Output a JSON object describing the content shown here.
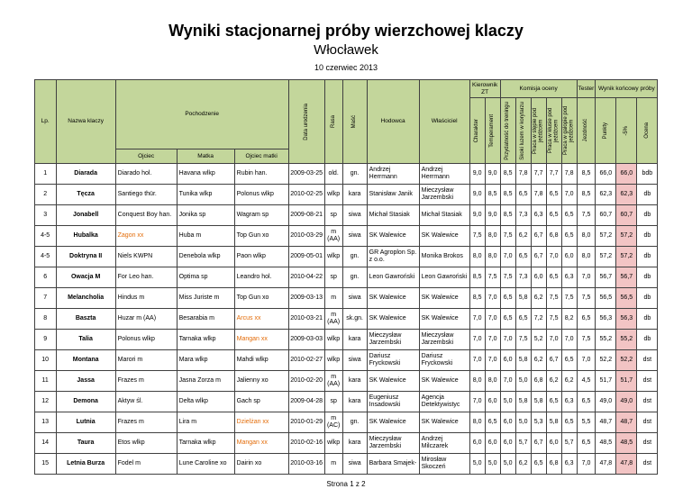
{
  "page": {
    "title": "Wyniki stacjonarnej próby wierzchowej klaczy",
    "subtitle": "Włocławek",
    "date": "10 czerwiec 2013",
    "footer": "Strona 1 z 2"
  },
  "colors": {
    "header_bg": "#c3d69b",
    "highlight_bg": "#f2c4c4",
    "special_text": "#e36c09"
  },
  "table": {
    "headers": {
      "lp": "Lp.",
      "nazwa": "Nazwa klaczy",
      "pochodzenie": "Pochodzenie",
      "ojciec": "Ojciec",
      "matka": "Matka",
      "ojciec_matki": "Ojciec matki",
      "data_urodzenia": "Data urodzenia",
      "rasa": "Rasa",
      "masc": "Maść",
      "hodowca": "Hodowca",
      "wlasciciel": "Właściciel",
      "kierownik_zt": "Kierownik ZT",
      "komisja_oceny": "Komisja oceny",
      "tester": "Tester",
      "wynik_koncowy": "Wynik końcowy próby",
      "charakter": "Charakter",
      "temperament": "Temperament",
      "przydatnosc": "Przydatność do treningu",
      "skoki": "Skoki luzem w korytarzu",
      "praca_step": "Praca w stępie pod jeźdźcem",
      "praca_klus": "Praca w kłusie pod jeźdźcem",
      "praca_galop": "Praca w galopie pod jeźdźcem",
      "jezdnosc": "Jezdność",
      "punkty": "Punkty",
      "minus5": "-5%",
      "ocena": "Ocena"
    },
    "rows": [
      {
        "lp": "1",
        "nazwa": "Diarada",
        "ojciec": "Diarado hol.",
        "matka": "Havana wlkp",
        "ojciec_matki": "Rubin han.",
        "data_ur": "2009-03-25",
        "rasa": "old.",
        "masc": "gn.",
        "hodowca": "Andrzej Herrmann",
        "wlasciciel": "Andrzej Herrmann",
        "oceny": [
          "9,0",
          "9,0",
          "8,5",
          "7,8",
          "7,7",
          "7,7",
          "7,8",
          "8,5"
        ],
        "punkty": "66,0",
        "minus5": "66,0",
        "ocena": "bdb"
      },
      {
        "lp": "2",
        "nazwa": "Tęcza",
        "ojciec": "Santiego thür.",
        "matka": "Tunika wlkp",
        "ojciec_matki": "Polonus wlkp",
        "data_ur": "2010-02-25",
        "rasa": "wlkp",
        "masc": "kara",
        "hodowca": "Stanisław Janik",
        "wlasciciel": "Mieczysław Jarzembski",
        "oceny": [
          "9,0",
          "8,5",
          "8,5",
          "6,5",
          "7,8",
          "6,5",
          "7,0",
          "8,5"
        ],
        "punkty": "62,3",
        "minus5": "62,3",
        "ocena": "db"
      },
      {
        "lp": "3",
        "nazwa": "Jonabell",
        "ojciec": "Conquest Boy han.",
        "matka": "Jonika sp",
        "ojciec_matki": "Wagram sp",
        "data_ur": "2009-08-21",
        "rasa": "sp",
        "masc": "siwa",
        "hodowca": "Michał Stasiak",
        "wlasciciel": "Michał Stasiak",
        "oceny": [
          "9,0",
          "9,0",
          "8,5",
          "7,3",
          "6,3",
          "6,5",
          "6,5",
          "7,5"
        ],
        "punkty": "60,7",
        "minus5": "60,7",
        "ocena": "db"
      },
      {
        "lp": "4-5",
        "nazwa": "Hubalka",
        "ojciec": "Zagon xx",
        "ojciec_red": true,
        "matka": "Huba m",
        "ojciec_matki": "Top Gun xo",
        "data_ur": "2010-03-29",
        "rasa": "m (AA)",
        "masc": "siwa",
        "hodowca": "SK Walewice",
        "wlasciciel": "SK Walewice",
        "oceny": [
          "7,5",
          "8,0",
          "7,5",
          "6,2",
          "6,7",
          "6,8",
          "6,5",
          "8,0"
        ],
        "punkty": "57,2",
        "minus5": "57,2",
        "ocena": "db"
      },
      {
        "lp": "4-5",
        "nazwa": "Doktryna II",
        "ojciec": "Niels KWPN",
        "matka": "Denebola wlkp",
        "ojciec_matki": "Paon wlkp",
        "data_ur": "2009-05-01",
        "rasa": "wlkp",
        "masc": "gn.",
        "hodowca": "GR Agroplon Sp. z o.o.",
        "wlasciciel": "Monika Brokos",
        "oceny": [
          "8,0",
          "8,0",
          "7,0",
          "6,5",
          "6,7",
          "7,0",
          "6,0",
          "8,0"
        ],
        "punkty": "57,2",
        "minus5": "57,2",
        "ocena": "db"
      },
      {
        "lp": "6",
        "nazwa": "Owacja M",
        "ojciec": "For Leo han.",
        "matka": "Optima sp",
        "ojciec_matki": "Leandro hol.",
        "data_ur": "2010-04-22",
        "rasa": "sp",
        "masc": "gn.",
        "hodowca": "Leon Gawroński",
        "wlasciciel": "Leon Gawroński",
        "oceny": [
          "8,5",
          "7,5",
          "7,5",
          "7,3",
          "6,0",
          "6,5",
          "6,3",
          "7,0"
        ],
        "punkty": "56,7",
        "minus5": "56,7",
        "ocena": "db"
      },
      {
        "lp": "7",
        "nazwa": "Melancholia",
        "ojciec": "Hindus m",
        "matka": "Miss Juriste m",
        "ojciec_matki": "Top Gun xo",
        "data_ur": "2009-03-13",
        "rasa": "m",
        "masc": "siwa",
        "hodowca": "SK Walewice",
        "wlasciciel": "SK Walewice",
        "oceny": [
          "8,5",
          "7,0",
          "6,5",
          "5,8",
          "6,2",
          "7,5",
          "7,5",
          "7,5"
        ],
        "punkty": "56,5",
        "minus5": "56,5",
        "ocena": "db"
      },
      {
        "lp": "8",
        "nazwa": "Baszta",
        "ojciec": "Huzar m (AA)",
        "matka": "Besarabia m",
        "ojciec_matki": "Arcus xx",
        "ojciec_matki_red": true,
        "data_ur": "2010-03-21",
        "rasa": "m (AA)",
        "masc": "sk.gn.",
        "hodowca": "SK Walewice",
        "wlasciciel": "SK Walewice",
        "oceny": [
          "7,0",
          "7,0",
          "6,5",
          "6,5",
          "7,2",
          "7,5",
          "8,2",
          "6,5"
        ],
        "punkty": "56,3",
        "minus5": "56,3",
        "ocena": "db"
      },
      {
        "lp": "9",
        "nazwa": "Talia",
        "ojciec": "Polonus wlkp",
        "matka": "Tarnaka wlkp",
        "ojciec_matki": "Mangan xx",
        "ojciec_matki_red": true,
        "data_ur": "2009-03-03",
        "rasa": "wlkp",
        "masc": "kara",
        "hodowca": "Mieczysław Jarzembski",
        "wlasciciel": "Mieczysław Jarzembski",
        "oceny": [
          "7,0",
          "7,0",
          "7,0",
          "7,5",
          "5,2",
          "7,0",
          "7,0",
          "7,5"
        ],
        "punkty": "55,2",
        "minus5": "55,2",
        "ocena": "db"
      },
      {
        "lp": "10",
        "nazwa": "Montana",
        "ojciec": "Marori m",
        "matka": "Mara wlkp",
        "ojciec_matki": "Mahdi wlkp",
        "data_ur": "2010-02-27",
        "rasa": "wlkp",
        "masc": "siwa",
        "hodowca": "Dariusz Fryckowski",
        "wlasciciel": "Dariusz Fryckowski",
        "oceny": [
          "7,0",
          "7,0",
          "6,0",
          "5,8",
          "6,2",
          "6,7",
          "6,5",
          "7,0"
        ],
        "punkty": "52,2",
        "minus5": "52,2",
        "ocena": "dst"
      },
      {
        "lp": "11",
        "nazwa": "Jassa",
        "ojciec": "Frazes m",
        "matka": "Jasna Zorza m",
        "ojciec_matki": "Jalienny xo",
        "data_ur": "2010-02-20",
        "rasa": "m (AA)",
        "masc": "kara",
        "hodowca": "SK Walewice",
        "wlasciciel": "SK Walewice",
        "oceny": [
          "8,0",
          "8,0",
          "7,0",
          "5,0",
          "6,8",
          "6,2",
          "6,2",
          "4,5"
        ],
        "punkty": "51,7",
        "minus5": "51,7",
        "ocena": "dst"
      },
      {
        "lp": "12",
        "nazwa": "Demona",
        "ojciec": "Aktyw śl.",
        "matka": "Delta wlkp",
        "ojciec_matki": "Gach sp",
        "data_ur": "2009-04-28",
        "rasa": "sp",
        "masc": "kara",
        "hodowca": "Eugeniusz Insadowski",
        "wlasciciel": "Agencja Detektywistyc",
        "oceny": [
          "7,0",
          "6,0",
          "5,0",
          "5,8",
          "5,8",
          "6,5",
          "6,3",
          "6,5"
        ],
        "punkty": "49,0",
        "minus5": "49,0",
        "ocena": "dst"
      },
      {
        "lp": "13",
        "nazwa": "Lutnia",
        "ojciec": "Frazes m",
        "matka": "Lira m",
        "ojciec_matki": "Dzielżan xx",
        "ojciec_matki_red": true,
        "data_ur": "2010-01-29",
        "rasa": "m (AC)",
        "masc": "gn.",
        "hodowca": "SK Walewice",
        "wlasciciel": "SK Walewice",
        "oceny": [
          "8,0",
          "6,5",
          "6,0",
          "5,0",
          "5,3",
          "5,8",
          "6,5",
          "5,5"
        ],
        "punkty": "48,7",
        "minus5": "48,7",
        "ocena": "dst"
      },
      {
        "lp": "14",
        "nazwa": "Taura",
        "ojciec": "Etos wlkp",
        "matka": "Tarnaka wlkp",
        "ojciec_matki": "Mangan xx",
        "ojciec_matki_red": true,
        "data_ur": "2010-02-16",
        "rasa": "wlkp",
        "masc": "kara",
        "hodowca": "Mieczysław Jarzembski",
        "wlasciciel": "Andrzej Milczarek",
        "oceny": [
          "6,0",
          "6,0",
          "6,0",
          "5,7",
          "6,7",
          "6,0",
          "5,7",
          "6,5"
        ],
        "punkty": "48,5",
        "minus5": "48,5",
        "ocena": "dst"
      },
      {
        "lp": "15",
        "nazwa": "Letnia Burza",
        "ojciec": "Fodel m",
        "matka": "Lune Caroline xo",
        "ojciec_matki": "Dairin xo",
        "data_ur": "2010-03-16",
        "rasa": "m",
        "masc": "siwa",
        "hodowca": "Barbara Smajek-",
        "wlasciciel": "Mirosław Skoczeń",
        "oceny": [
          "5,0",
          "5,0",
          "5,0",
          "6,2",
          "6,5",
          "6,8",
          "6,3",
          "7,0"
        ],
        "punkty": "47,8",
        "minus5": "47,8",
        "ocena": "dst"
      }
    ]
  }
}
